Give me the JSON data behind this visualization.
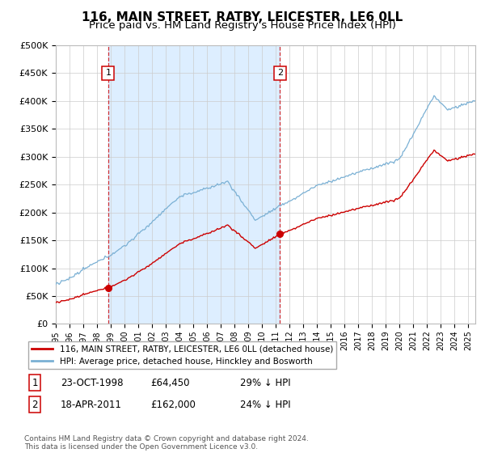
{
  "title": "116, MAIN STREET, RATBY, LEICESTER, LE6 0LL",
  "subtitle": "Price paid vs. HM Land Registry's House Price Index (HPI)",
  "ylim": [
    0,
    500000
  ],
  "yticks": [
    0,
    50000,
    100000,
    150000,
    200000,
    250000,
    300000,
    350000,
    400000,
    450000,
    500000
  ],
  "ytick_labels": [
    "£0",
    "£50K",
    "£100K",
    "£150K",
    "£200K",
    "£250K",
    "£300K",
    "£350K",
    "£400K",
    "£450K",
    "£500K"
  ],
  "sale1_date": "23-OCT-1998",
  "sale1_price": 64450,
  "sale2_date": "18-APR-2011",
  "sale2_price": 162000,
  "sale1_x": 1998.81,
  "sale2_x": 2011.29,
  "property_line_color": "#cc0000",
  "hpi_line_color": "#7ab0d4",
  "shade_color": "#ddeeff",
  "property_label": "116, MAIN STREET, RATBY, LEICESTER, LE6 0LL (detached house)",
  "hpi_label": "HPI: Average price, detached house, Hinckley and Bosworth",
  "footer": "Contains HM Land Registry data © Crown copyright and database right 2024.\nThis data is licensed under the Open Government Licence v3.0.",
  "background_color": "#ffffff",
  "grid_color": "#cccccc",
  "title_fontsize": 11,
  "subtitle_fontsize": 9.5,
  "sale1_hpi_pct": "29% ↓ HPI",
  "sale2_hpi_pct": "24% ↓ HPI"
}
